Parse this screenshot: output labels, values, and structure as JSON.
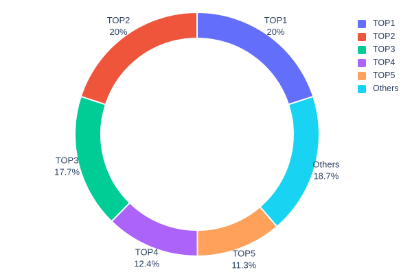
{
  "chart_data": {
    "type": "pie",
    "subtype": "donut",
    "title": "",
    "labels": [
      "TOP1",
      "TOP2",
      "TOP3",
      "TOP4",
      "TOP5",
      "Others"
    ],
    "values": [
      20,
      20,
      17.7,
      12.4,
      11.3,
      18.7
    ],
    "percent_labels": [
      "20%",
      "20%",
      "17.7%",
      "12.4%",
      "11.3%",
      "18.7%"
    ],
    "colors": [
      "#636efa",
      "#ef553b",
      "#00cc96",
      "#ab63fa",
      "#ffa15a",
      "#19d3f3"
    ],
    "hole_ratio": 0.787,
    "start_angle_deg": 0,
    "clockwise_render_order": [
      0,
      5,
      4,
      3,
      2,
      1
    ],
    "slice_border_color": "#ffffff",
    "text_color": "#2a3f5f",
    "background_color": "#ffffff",
    "labels_position": "outside",
    "legend": {
      "position": "right",
      "items": [
        "TOP1",
        "TOP2",
        "TOP3",
        "TOP4",
        "TOP5",
        "Others"
      ]
    }
  }
}
